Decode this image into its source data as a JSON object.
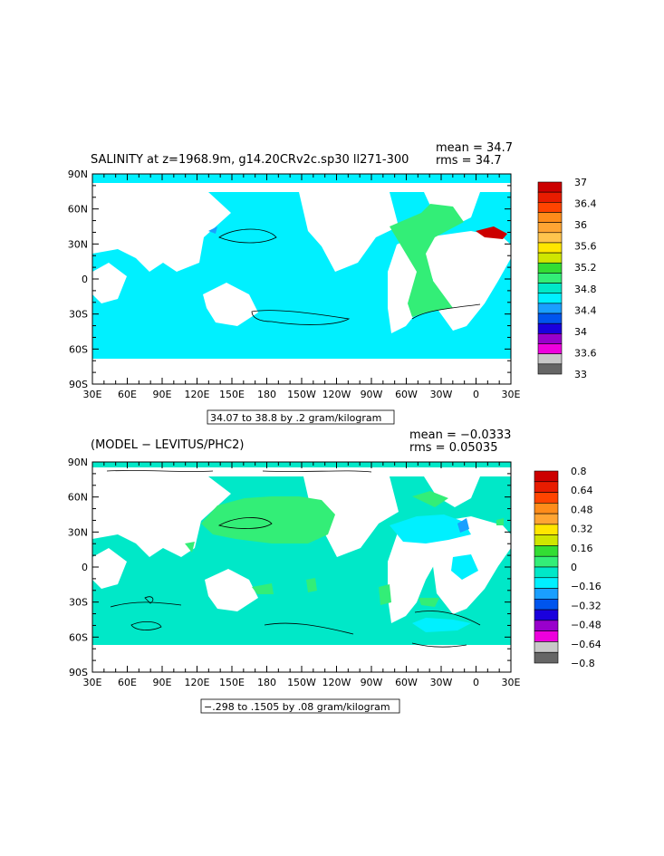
{
  "panels": [
    {
      "title": "SALINITY at z=1968.9m, g14.20CRv2c.sp30  ll271-300",
      "mean_text": "mean = 34.7",
      "rms_text": "rms = 34.7",
      "range_text": "34.07 to 38.8 by .2 gram/kilogram",
      "x_ticks": [
        "30E",
        "60E",
        "90E",
        "120E",
        "150E",
        "180",
        "150W",
        "120W",
        "90W",
        "60W",
        "30W",
        "0",
        "30E"
      ],
      "y_ticks": [
        "90N",
        "60N",
        "30N",
        "0",
        "30S",
        "60S",
        "90S"
      ],
      "colorbar": {
        "labels": [
          "37",
          "36.4",
          "36",
          "35.6",
          "35.2",
          "34.8",
          "34.4",
          "34",
          "33.6",
          "33"
        ],
        "colors": [
          "#cc0000",
          "#e81c00",
          "#ff4400",
          "#ff8c1a",
          "#ffa533",
          "#ffc44d",
          "#ffe600",
          "#cfe600",
          "#33dd33",
          "#33ee77",
          "#00e8c8",
          "#00f0ff",
          "#1a9fff",
          "#0055ee",
          "#1a00dd",
          "#9900cc",
          "#ee00dd",
          "#c8c8c8",
          "#666666"
        ]
      },
      "ocean_color": "#00f0ff"
    },
    {
      "title": "(MODEL − LEVITUS/PHC2)",
      "mean_text": "mean = −0.0333",
      "rms_text": "rms = 0.05035",
      "range_text": "−.298 to .1505 by .08 gram/kilogram",
      "x_ticks": [
        "30E",
        "60E",
        "90E",
        "120E",
        "150E",
        "180",
        "150W",
        "120W",
        "90W",
        "60W",
        "30W",
        "0",
        "30E"
      ],
      "y_ticks": [
        "90N",
        "60N",
        "30N",
        "0",
        "30S",
        "60S",
        "90S"
      ],
      "colorbar": {
        "labels": [
          "0.8",
          "0.64",
          "0.48",
          "0.32",
          "0.16",
          "0",
          "−0.16",
          "−0.32",
          "−0.48",
          "−0.64",
          "−0.8"
        ],
        "colors": [
          "#cc0000",
          "#e81c00",
          "#ff4400",
          "#ff8c1a",
          "#ffa533",
          "#ffe600",
          "#cfe600",
          "#33dd33",
          "#33ee77",
          "#00e8c8",
          "#00f0ff",
          "#1a9fff",
          "#0055ee",
          "#1a00dd",
          "#9900cc",
          "#ee00dd",
          "#c8c8c8",
          "#666666"
        ]
      },
      "ocean_color": "#00e8c8"
    }
  ]
}
